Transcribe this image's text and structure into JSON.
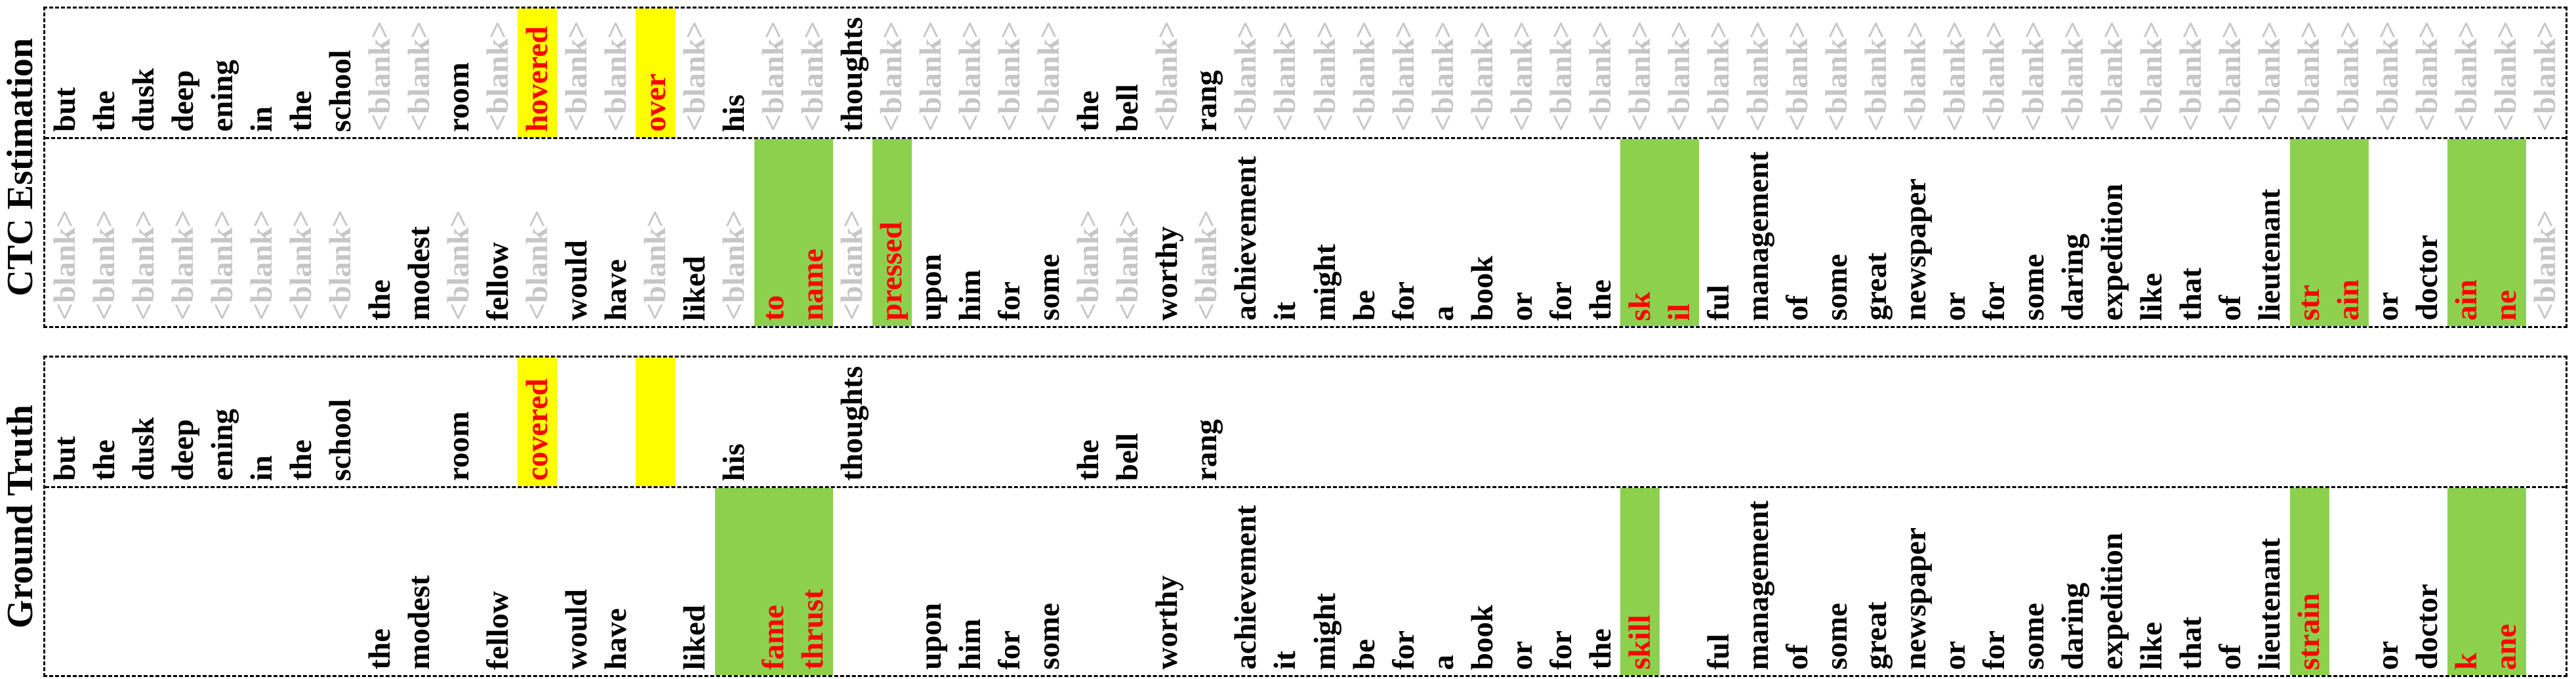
{
  "colors": {
    "word_text": "#000000",
    "blank_text": "#c6c6c6",
    "error_text": "#ff0000",
    "substitution_highlight": "#ffff00",
    "segment_highlight": "#8dd04e",
    "border": "#000000",
    "background": "#ffffff"
  },
  "blank_token": "<blank>",
  "chart_data": {
    "type": "table",
    "columns_per_row": 64,
    "legend_position": "none",
    "grid": "dashed panel borders with dashed row separator",
    "panels": [
      {
        "label": "CTC Estimation",
        "rows": [
          {
            "cells": [
              {
                "t": "but"
              },
              {
                "t": "the"
              },
              {
                "t": "dusk"
              },
              {
                "t": "deep"
              },
              {
                "t": "ening"
              },
              {
                "t": "in"
              },
              {
                "t": "the"
              },
              {
                "t": "school"
              },
              {
                "t": "<blank>",
                "s": "b"
              },
              {
                "t": "<blank>",
                "s": "b"
              },
              {
                "t": "room"
              },
              {
                "t": "<blank>",
                "s": "b"
              },
              {
                "t": "hovered",
                "s": "e",
                "bg": "y"
              },
              {
                "t": "<blank>",
                "s": "b"
              },
              {
                "t": "<blank>",
                "s": "b"
              },
              {
                "t": "over",
                "s": "e",
                "bg": "y"
              },
              {
                "t": "<blank>",
                "s": "b"
              },
              {
                "t": "his"
              },
              {
                "t": "<blank>",
                "s": "b"
              },
              {
                "t": "<blank>",
                "s": "b"
              },
              {
                "t": "thoughts"
              },
              {
                "t": "<blank>",
                "s": "b"
              },
              {
                "t": "<blank>",
                "s": "b"
              },
              {
                "t": "<blank>",
                "s": "b"
              },
              {
                "t": "<blank>",
                "s": "b"
              },
              {
                "t": "<blank>",
                "s": "b"
              },
              {
                "t": "the"
              },
              {
                "t": "bell"
              },
              {
                "t": "<blank>",
                "s": "b"
              },
              {
                "t": "rang"
              },
              {
                "t": "<blank>",
                "s": "b"
              },
              {
                "t": "<blank>",
                "s": "b"
              },
              {
                "t": "<blank>",
                "s": "b"
              },
              {
                "t": "<blank>",
                "s": "b"
              },
              {
                "t": "<blank>",
                "s": "b"
              },
              {
                "t": "<blank>",
                "s": "b"
              },
              {
                "t": "<blank>",
                "s": "b"
              },
              {
                "t": "<blank>",
                "s": "b"
              },
              {
                "t": "<blank>",
                "s": "b"
              },
              {
                "t": "<blank>",
                "s": "b"
              },
              {
                "t": "<blank>",
                "s": "b"
              },
              {
                "t": "<blank>",
                "s": "b"
              },
              {
                "t": "<blank>",
                "s": "b"
              },
              {
                "t": "<blank>",
                "s": "b"
              },
              {
                "t": "<blank>",
                "s": "b"
              },
              {
                "t": "<blank>",
                "s": "b"
              },
              {
                "t": "<blank>",
                "s": "b"
              },
              {
                "t": "<blank>",
                "s": "b"
              },
              {
                "t": "<blank>",
                "s": "b"
              },
              {
                "t": "<blank>",
                "s": "b"
              },
              {
                "t": "<blank>",
                "s": "b"
              },
              {
                "t": "<blank>",
                "s": "b"
              },
              {
                "t": "<blank>",
                "s": "b"
              },
              {
                "t": "<blank>",
                "s": "b"
              },
              {
                "t": "<blank>",
                "s": "b"
              },
              {
                "t": "<blank>",
                "s": "b"
              },
              {
                "t": "<blank>",
                "s": "b"
              },
              {
                "t": "<blank>",
                "s": "b"
              },
              {
                "t": "<blank>",
                "s": "b"
              },
              {
                "t": "<blank>",
                "s": "b"
              },
              {
                "t": "<blank>",
                "s": "b"
              },
              {
                "t": "<blank>",
                "s": "b"
              },
              {
                "t": "<blank>",
                "s": "b"
              },
              {
                "t": "<blank>",
                "s": "b"
              }
            ]
          },
          {
            "cells": [
              {
                "t": "<blank>",
                "s": "b"
              },
              {
                "t": "<blank>",
                "s": "b"
              },
              {
                "t": "<blank>",
                "s": "b"
              },
              {
                "t": "<blank>",
                "s": "b"
              },
              {
                "t": "<blank>",
                "s": "b"
              },
              {
                "t": "<blank>",
                "s": "b"
              },
              {
                "t": "<blank>",
                "s": "b"
              },
              {
                "t": "<blank>",
                "s": "b"
              },
              {
                "t": "the"
              },
              {
                "t": "modest"
              },
              {
                "t": "<blank>",
                "s": "b"
              },
              {
                "t": "fellow"
              },
              {
                "t": "<blank>",
                "s": "b"
              },
              {
                "t": "would"
              },
              {
                "t": "have"
              },
              {
                "t": "<blank>",
                "s": "b"
              },
              {
                "t": "liked"
              },
              {
                "t": "<blank>",
                "s": "b"
              },
              {
                "t": "to",
                "s": "e",
                "bg": "g"
              },
              {
                "t": "name",
                "s": "e",
                "bg": "g"
              },
              {
                "t": "<blank>",
                "s": "b"
              },
              {
                "t": "pressed",
                "s": "e",
                "bg": "g"
              },
              {
                "t": "upon"
              },
              {
                "t": "him"
              },
              {
                "t": "for"
              },
              {
                "t": "some"
              },
              {
                "t": "<blank>",
                "s": "b"
              },
              {
                "t": "<blank>",
                "s": "b"
              },
              {
                "t": "worthy"
              },
              {
                "t": "<blank>",
                "s": "b"
              },
              {
                "t": "achievement"
              },
              {
                "t": "it"
              },
              {
                "t": "might"
              },
              {
                "t": "be"
              },
              {
                "t": "for"
              },
              {
                "t": "a"
              },
              {
                "t": "book"
              },
              {
                "t": "or"
              },
              {
                "t": "for"
              },
              {
                "t": "the"
              },
              {
                "t": "sk",
                "s": "e",
                "bg": "g"
              },
              {
                "t": "il",
                "s": "e",
                "bg": "g"
              },
              {
                "t": "ful"
              },
              {
                "t": "management"
              },
              {
                "t": "of"
              },
              {
                "t": "some"
              },
              {
                "t": "great"
              },
              {
                "t": "newspaper"
              },
              {
                "t": "or"
              },
              {
                "t": "for"
              },
              {
                "t": "some"
              },
              {
                "t": "daring"
              },
              {
                "t": "expedition"
              },
              {
                "t": "like"
              },
              {
                "t": "that"
              },
              {
                "t": "of"
              },
              {
                "t": "lieutenant"
              },
              {
                "t": "str",
                "s": "e",
                "bg": "g"
              },
              {
                "t": "ain",
                "s": "e",
                "bg": "g"
              },
              {
                "t": "or"
              },
              {
                "t": "doctor"
              },
              {
                "t": "ain",
                "s": "e",
                "bg": "g"
              },
              {
                "t": "ne",
                "s": "e",
                "bg": "g"
              },
              {
                "t": "<blank>",
                "s": "b"
              }
            ]
          }
        ]
      },
      {
        "label": "Ground Truth",
        "rows": [
          {
            "cells": [
              {
                "t": "but"
              },
              {
                "t": "the"
              },
              {
                "t": "dusk"
              },
              {
                "t": "deep"
              },
              {
                "t": "ening"
              },
              {
                "t": "in"
              },
              {
                "t": "the"
              },
              {
                "t": "school"
              },
              {
                "t": ""
              },
              {
                "t": ""
              },
              {
                "t": "room"
              },
              {
                "t": ""
              },
              {
                "t": "covered",
                "s": "e",
                "bg": "y"
              },
              {
                "t": ""
              },
              {
                "t": ""
              },
              {
                "t": "",
                "bg": "y"
              },
              {
                "t": ""
              },
              {
                "t": "his"
              },
              {
                "t": ""
              },
              {
                "t": ""
              },
              {
                "t": "thoughts"
              },
              {
                "t": ""
              },
              {
                "t": ""
              },
              {
                "t": ""
              },
              {
                "t": ""
              },
              {
                "t": ""
              },
              {
                "t": "the"
              },
              {
                "t": "bell"
              },
              {
                "t": ""
              },
              {
                "t": "rang"
              },
              {
                "t": ""
              },
              {
                "t": ""
              },
              {
                "t": ""
              },
              {
                "t": ""
              },
              {
                "t": ""
              },
              {
                "t": ""
              },
              {
                "t": ""
              },
              {
                "t": ""
              },
              {
                "t": ""
              },
              {
                "t": ""
              },
              {
                "t": ""
              },
              {
                "t": ""
              },
              {
                "t": ""
              },
              {
                "t": ""
              },
              {
                "t": ""
              },
              {
                "t": ""
              },
              {
                "t": ""
              },
              {
                "t": ""
              },
              {
                "t": ""
              },
              {
                "t": ""
              },
              {
                "t": ""
              },
              {
                "t": ""
              },
              {
                "t": ""
              },
              {
                "t": ""
              },
              {
                "t": ""
              },
              {
                "t": ""
              },
              {
                "t": ""
              },
              {
                "t": ""
              },
              {
                "t": ""
              },
              {
                "t": ""
              },
              {
                "t": ""
              },
              {
                "t": ""
              },
              {
                "t": ""
              },
              {
                "t": ""
              }
            ]
          },
          {
            "cells": [
              {
                "t": ""
              },
              {
                "t": ""
              },
              {
                "t": ""
              },
              {
                "t": ""
              },
              {
                "t": ""
              },
              {
                "t": ""
              },
              {
                "t": ""
              },
              {
                "t": ""
              },
              {
                "t": "the"
              },
              {
                "t": "modest"
              },
              {
                "t": ""
              },
              {
                "t": "fellow"
              },
              {
                "t": ""
              },
              {
                "t": "would"
              },
              {
                "t": "have"
              },
              {
                "t": ""
              },
              {
                "t": "liked"
              },
              {
                "t": "",
                "bg": "g"
              },
              {
                "t": "fame",
                "s": "e",
                "bg": "g"
              },
              {
                "t": "thrust",
                "s": "e",
                "bg": "g"
              },
              {
                "t": ""
              },
              {
                "t": ""
              },
              {
                "t": "upon"
              },
              {
                "t": "him"
              },
              {
                "t": "for"
              },
              {
                "t": "some"
              },
              {
                "t": ""
              },
              {
                "t": ""
              },
              {
                "t": "worthy"
              },
              {
                "t": ""
              },
              {
                "t": "achievement"
              },
              {
                "t": "it"
              },
              {
                "t": "might"
              },
              {
                "t": "be"
              },
              {
                "t": "for"
              },
              {
                "t": "a"
              },
              {
                "t": "book"
              },
              {
                "t": "or"
              },
              {
                "t": "for"
              },
              {
                "t": "the"
              },
              {
                "t": "skill",
                "s": "e",
                "bg": "g"
              },
              {
                "t": ""
              },
              {
                "t": "ful"
              },
              {
                "t": "management"
              },
              {
                "t": "of"
              },
              {
                "t": "some"
              },
              {
                "t": "great"
              },
              {
                "t": "newspaper"
              },
              {
                "t": "or"
              },
              {
                "t": "for"
              },
              {
                "t": "some"
              },
              {
                "t": "daring"
              },
              {
                "t": "expedition"
              },
              {
                "t": "like"
              },
              {
                "t": "that"
              },
              {
                "t": "of"
              },
              {
                "t": "lieutenant"
              },
              {
                "t": "strain",
                "s": "e",
                "bg": "g"
              },
              {
                "t": ""
              },
              {
                "t": "or"
              },
              {
                "t": "doctor"
              },
              {
                "t": "k",
                "s": "e",
                "bg": "g"
              },
              {
                "t": "ane",
                "s": "e",
                "bg": "g"
              },
              {
                "t": ""
              }
            ]
          }
        ]
      }
    ]
  }
}
